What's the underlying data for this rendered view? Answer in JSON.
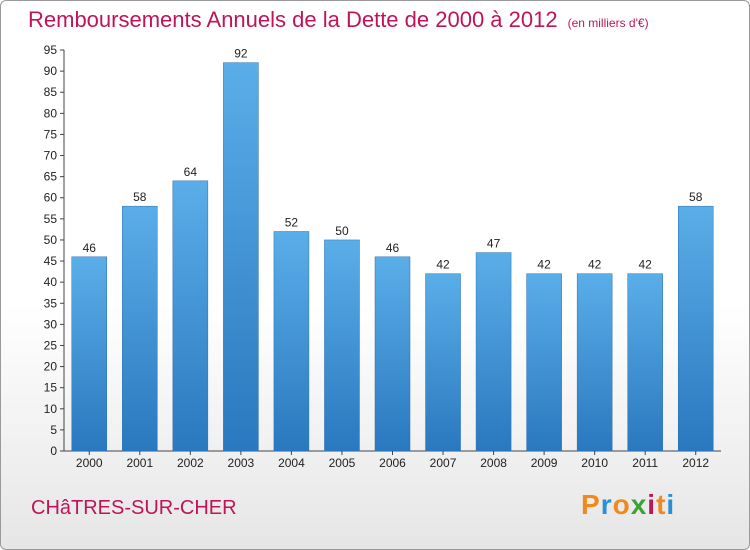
{
  "chart_data": {
    "type": "bar",
    "title": "Remboursements Annuels de la Dette de 2000 à 2012",
    "unit": "(en milliers d'€)",
    "categories": [
      "2000",
      "2001",
      "2002",
      "2003",
      "2004",
      "2005",
      "2006",
      "2007",
      "2008",
      "2009",
      "2010",
      "2011",
      "2012"
    ],
    "values": [
      46,
      58,
      64,
      92,
      52,
      50,
      46,
      42,
      47,
      42,
      42,
      42,
      58
    ],
    "ylim": [
      0,
      95
    ],
    "yticks": [
      0,
      5,
      10,
      15,
      20,
      25,
      30,
      35,
      40,
      45,
      50,
      55,
      60,
      65,
      70,
      75,
      80,
      85,
      90,
      95
    ],
    "grid": false,
    "bar_color_top": "#5aaee8",
    "bar_color_bottom": "#2a78bf"
  },
  "location": "CHâTRES-SUR-CHER",
  "brand": {
    "letters": [
      "P",
      "r",
      "o",
      "x",
      "i",
      "t",
      "i"
    ],
    "colors": [
      "#f08a1c",
      "#2b8fd6",
      "#f08a1c",
      "#3aa335",
      "#c0145a",
      "#f08a1c",
      "#2b8fd6"
    ]
  }
}
